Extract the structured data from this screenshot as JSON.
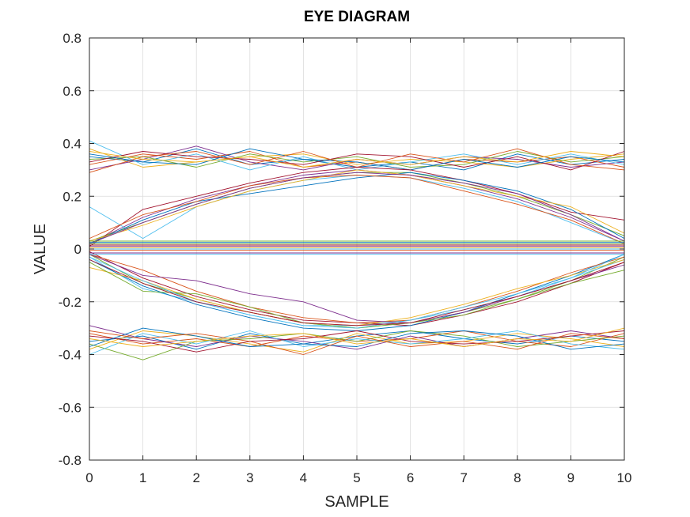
{
  "chart_data": {
    "type": "line",
    "title": "EYE DIAGRAM",
    "xlabel": "SAMPLE",
    "ylabel": "VALUE",
    "xlim": [
      0,
      10
    ],
    "ylim": [
      -0.8,
      0.8
    ],
    "xticks": [
      0,
      1,
      2,
      3,
      4,
      5,
      6,
      7,
      8,
      9,
      10
    ],
    "xtick_labels": [
      "0",
      "1",
      "2",
      "3",
      "4",
      "5",
      "6",
      "7",
      "8",
      "9",
      "10"
    ],
    "yticks": [
      -0.8,
      -0.6,
      -0.4,
      -0.2,
      0,
      0.2,
      0.4,
      0.6,
      0.8
    ],
    "ytick_labels": [
      "-0.8",
      "-0.6",
      "-0.4",
      "-0.2",
      "0",
      "0.2",
      "0.4",
      "0.6",
      "0.8"
    ],
    "grid": true,
    "colors": [
      "#0072BD",
      "#D95319",
      "#EDB120",
      "#7E2F8E",
      "#77AC30",
      "#4DBEEE",
      "#A2142F"
    ],
    "x": [
      0,
      1,
      2,
      3,
      4,
      5,
      6,
      7,
      8,
      9,
      10
    ],
    "series": [
      {
        "values": [
          0.35,
          0.33,
          0.38,
          0.32,
          0.34,
          0.31,
          0.33,
          0.3,
          0.36,
          0.32,
          0.34
        ]
      },
      {
        "values": [
          0.32,
          0.36,
          0.34,
          0.37,
          0.31,
          0.33,
          0.3,
          0.34,
          0.33,
          0.35,
          0.31
        ]
      },
      {
        "values": [
          0.38,
          0.31,
          0.33,
          0.35,
          0.36,
          0.32,
          0.34,
          0.33,
          0.31,
          0.34,
          0.36
        ]
      },
      {
        "values": [
          0.3,
          0.34,
          0.39,
          0.33,
          0.3,
          0.34,
          0.32,
          0.35,
          0.34,
          0.31,
          0.33
        ]
      },
      {
        "values": [
          0.34,
          0.35,
          0.31,
          0.36,
          0.33,
          0.35,
          0.31,
          0.32,
          0.37,
          0.33,
          0.35
        ]
      },
      {
        "values": [
          0.41,
          0.32,
          0.36,
          0.3,
          0.35,
          0.3,
          0.33,
          0.36,
          0.32,
          0.36,
          0.32
        ]
      },
      {
        "values": [
          0.33,
          0.37,
          0.35,
          0.34,
          0.32,
          0.36,
          0.35,
          0.31,
          0.35,
          0.3,
          0.37
        ]
      },
      {
        "values": [
          0.36,
          0.33,
          0.32,
          0.38,
          0.34,
          0.33,
          0.3,
          0.34,
          0.31,
          0.35,
          0.33
        ]
      },
      {
        "values": [
          0.29,
          0.35,
          0.37,
          0.32,
          0.37,
          0.31,
          0.36,
          0.33,
          0.38,
          0.32,
          0.3
        ]
      },
      {
        "values": [
          0.37,
          0.34,
          0.33,
          0.35,
          0.31,
          0.34,
          0.32,
          0.35,
          0.33,
          0.37,
          0.35
        ]
      },
      {
        "values": [
          0.02,
          0.12,
          0.19,
          0.24,
          0.28,
          0.3,
          0.28,
          0.24,
          0.19,
          0.12,
          0.03
        ]
      },
      {
        "values": [
          0.03,
          0.1,
          0.17,
          0.23,
          0.27,
          0.29,
          0.29,
          0.25,
          0.2,
          0.13,
          0.05
        ]
      },
      {
        "values": [
          0.16,
          0.04,
          0.16,
          0.22,
          0.26,
          0.28,
          0.27,
          0.23,
          0.18,
          0.1,
          0.02
        ]
      },
      {
        "values": [
          0.01,
          0.15,
          0.2,
          0.25,
          0.29,
          0.31,
          0.3,
          0.26,
          0.21,
          0.14,
          0.11
        ]
      },
      {
        "values": [
          0.02,
          0.11,
          0.18,
          0.21,
          0.24,
          0.27,
          0.29,
          0.26,
          0.22,
          0.15,
          0.04
        ]
      },
      {
        "values": [
          0.04,
          0.13,
          0.18,
          0.24,
          0.27,
          0.28,
          0.27,
          0.22,
          0.17,
          0.11,
          0.02
        ]
      },
      {
        "values": [
          0.03,
          0.09,
          0.16,
          0.22,
          0.26,
          0.3,
          0.28,
          0.24,
          0.2,
          0.16,
          0.06
        ]
      },
      {
        "values": [
          0.02,
          0.1,
          0.17,
          0.23,
          0.27,
          0.29,
          0.28,
          0.25,
          0.21,
          0.13,
          0.03
        ]
      },
      {
        "values": [
          -0.02,
          -0.13,
          -0.19,
          -0.24,
          -0.28,
          -0.3,
          -0.28,
          -0.24,
          -0.19,
          -0.12,
          -0.03
        ]
      },
      {
        "values": [
          -0.03,
          -0.15,
          -0.2,
          -0.25,
          -0.29,
          -0.29,
          -0.27,
          -0.23,
          -0.18,
          -0.11,
          -0.04
        ]
      },
      {
        "values": [
          -0.01,
          -0.11,
          -0.18,
          -0.23,
          -0.27,
          -0.28,
          -0.29,
          -0.25,
          -0.2,
          -0.13,
          -0.05
        ]
      },
      {
        "values": [
          -0.04,
          -0.14,
          -0.21,
          -0.26,
          -0.3,
          -0.31,
          -0.29,
          -0.24,
          -0.17,
          -0.1,
          -0.02
        ]
      },
      {
        "values": [
          -0.02,
          -0.08,
          -0.16,
          -0.22,
          -0.26,
          -0.28,
          -0.27,
          -0.22,
          -0.16,
          -0.09,
          -0.03
        ]
      },
      {
        "values": [
          -0.07,
          -0.12,
          -0.19,
          -0.24,
          -0.28,
          -0.29,
          -0.26,
          -0.21,
          -0.15,
          -0.1,
          -0.04
        ]
      },
      {
        "values": [
          -0.02,
          -0.1,
          -0.12,
          -0.17,
          -0.2,
          -0.27,
          -0.28,
          -0.24,
          -0.18,
          -0.12,
          -0.06
        ]
      },
      {
        "values": [
          -0.05,
          -0.16,
          -0.17,
          -0.22,
          -0.28,
          -0.3,
          -0.28,
          -0.25,
          -0.19,
          -0.13,
          -0.08
        ]
      },
      {
        "values": [
          -0.03,
          -0.12,
          -0.2,
          -0.25,
          -0.29,
          -0.3,
          -0.27,
          -0.22,
          -0.17,
          -0.11,
          -0.02
        ]
      },
      {
        "values": [
          -0.04,
          -0.13,
          -0.2,
          -0.24,
          -0.28,
          -0.29,
          -0.28,
          -0.23,
          -0.18,
          -0.12,
          -0.05
        ]
      },
      {
        "values": [
          -0.35,
          -0.33,
          -0.38,
          -0.32,
          -0.36,
          -0.33,
          -0.31,
          -0.34,
          -0.36,
          -0.33,
          -0.35
        ]
      },
      {
        "values": [
          -0.32,
          -0.36,
          -0.34,
          -0.37,
          -0.33,
          -0.35,
          -0.34,
          -0.31,
          -0.35,
          -0.37,
          -0.32
        ]
      },
      {
        "values": [
          -0.38,
          -0.31,
          -0.33,
          -0.36,
          -0.39,
          -0.32,
          -0.36,
          -0.35,
          -0.32,
          -0.34,
          -0.37
        ]
      },
      {
        "values": [
          -0.29,
          -0.34,
          -0.37,
          -0.33,
          -0.35,
          -0.38,
          -0.33,
          -0.37,
          -0.34,
          -0.31,
          -0.34
        ]
      },
      {
        "values": [
          -0.36,
          -0.42,
          -0.35,
          -0.34,
          -0.32,
          -0.35,
          -0.31,
          -0.33,
          -0.37,
          -0.35,
          -0.33
        ]
      },
      {
        "values": [
          -0.4,
          -0.32,
          -0.36,
          -0.31,
          -0.37,
          -0.34,
          -0.36,
          -0.34,
          -0.31,
          -0.36,
          -0.38
        ]
      },
      {
        "values": [
          -0.33,
          -0.35,
          -0.39,
          -0.35,
          -0.34,
          -0.31,
          -0.35,
          -0.36,
          -0.35,
          -0.33,
          -0.31
        ]
      },
      {
        "values": [
          -0.37,
          -0.3,
          -0.33,
          -0.37,
          -0.36,
          -0.37,
          -0.32,
          -0.31,
          -0.33,
          -0.38,
          -0.36
        ]
      },
      {
        "values": [
          -0.31,
          -0.34,
          -0.32,
          -0.35,
          -0.4,
          -0.33,
          -0.37,
          -0.35,
          -0.38,
          -0.32,
          -0.34
        ]
      },
      {
        "values": [
          -0.34,
          -0.37,
          -0.35,
          -0.33,
          -0.32,
          -0.36,
          -0.34,
          -0.37,
          -0.34,
          -0.35,
          -0.3
        ]
      },
      {
        "values": [
          0.01,
          0.01,
          0.01,
          0.01,
          0.01,
          0.01,
          0.01,
          0.01,
          0.01,
          0.01,
          0.01
        ]
      },
      {
        "values": [
          0.02,
          0.02,
          0.02,
          0.02,
          0.02,
          0.02,
          0.02,
          0.02,
          0.02,
          0.02,
          0.02
        ]
      },
      {
        "values": [
          0.0,
          0.0,
          0.0,
          0.0,
          0.0,
          0.0,
          0.0,
          0.0,
          0.0,
          0.0,
          0.0
        ]
      },
      {
        "values": [
          0.015,
          0.015,
          0.015,
          0.015,
          0.015,
          0.015,
          0.015,
          0.015,
          0.015,
          0.015,
          0.015
        ]
      },
      {
        "values": [
          0.025,
          0.025,
          0.025,
          0.025,
          0.025,
          0.025,
          0.025,
          0.025,
          0.025,
          0.025,
          0.025
        ]
      },
      {
        "values": [
          -0.005,
          -0.005,
          -0.005,
          -0.005,
          -0.005,
          -0.005,
          -0.005,
          -0.005,
          -0.005,
          -0.005,
          -0.005
        ]
      },
      {
        "values": [
          0.005,
          0.005,
          0.005,
          0.005,
          0.005,
          0.005,
          0.005,
          0.005,
          0.005,
          0.005,
          0.005
        ]
      },
      {
        "values": [
          -0.015,
          -0.015,
          -0.015,
          -0.015,
          -0.015,
          -0.015,
          -0.015,
          -0.015,
          -0.015,
          -0.015,
          -0.015
        ]
      },
      {
        "values": [
          0.03,
          0.03,
          0.03,
          0.03,
          0.03,
          0.03,
          0.03,
          0.03,
          0.03,
          0.03,
          0.03
        ]
      },
      {
        "values": [
          -0.02,
          -0.02,
          -0.02,
          -0.02,
          -0.02,
          -0.02,
          -0.02,
          -0.02,
          -0.02,
          -0.02,
          -0.02
        ]
      }
    ]
  }
}
